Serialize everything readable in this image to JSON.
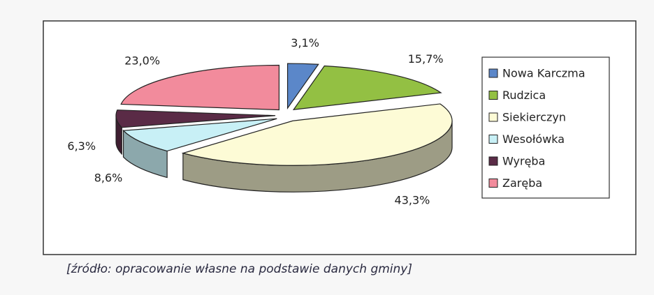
{
  "chart_data": {
    "type": "pie",
    "categories": [
      "Nowa Karczma",
      "Rudzica",
      "Siekierczyn",
      "Wesołówka",
      "Wyręba",
      "Zaręba"
    ],
    "values": [
      3.1,
      15.7,
      43.3,
      8.6,
      6.3,
      23.0
    ],
    "value_labels": [
      "3,1%",
      "15,7%",
      "43,3%",
      "8,6%",
      "6,3%",
      "23,0%"
    ],
    "colors": [
      "#5b87c9",
      "#93c043",
      "#fdfbd6",
      "#c8f0f6",
      "#5a2b46",
      "#f28b9c"
    ],
    "legend": "right",
    "source": "[źródło: opracowanie własne na podstawie danych gminy]"
  }
}
